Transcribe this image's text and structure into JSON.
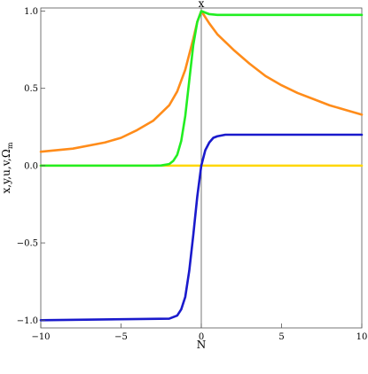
{
  "chart_data": {
    "type": "line",
    "title": "",
    "xlabel": "N",
    "ylabel": "x,y,u,v,Ω",
    "ylabel_subscript": "m",
    "top_label": "x",
    "xlim": [
      -10,
      10
    ],
    "ylim": [
      -1.05,
      1.02
    ],
    "x_ticks": [
      -10,
      -5,
      0,
      5,
      10
    ],
    "x_tick_labels": [
      "−10",
      "−5",
      "0",
      "5",
      "10"
    ],
    "y_ticks": [
      -1.0,
      -0.5,
      0.0,
      0.5,
      1.0
    ],
    "y_tick_labels": [
      "−1.0",
      "−0.5",
      "0.0",
      "0.5",
      "1.0"
    ],
    "grid": false,
    "series": [
      {
        "color": "#ffd700",
        "x": [
          -10,
          -5,
          0,
          5,
          10
        ],
        "y": [
          0,
          0,
          0,
          0,
          0
        ]
      },
      {
        "color": "#ff8c1a",
        "x": [
          -10,
          -8,
          -6,
          -5,
          -4,
          -3,
          -2,
          -1.5,
          -1,
          -0.5,
          -0.25,
          0,
          0.5,
          1,
          2,
          3,
          4,
          5,
          6,
          7,
          8,
          9,
          10
        ],
        "y": [
          0.09,
          0.11,
          0.15,
          0.18,
          0.23,
          0.29,
          0.39,
          0.48,
          0.62,
          0.82,
          0.93,
          1.0,
          0.92,
          0.85,
          0.75,
          0.66,
          0.58,
          0.52,
          0.47,
          0.43,
          0.39,
          0.36,
          0.33
        ]
      },
      {
        "color": "#22ee22",
        "x": [
          -10,
          -3,
          -2.5,
          -2,
          -1.75,
          -1.5,
          -1.25,
          -1,
          -0.75,
          -0.5,
          -0.25,
          0,
          0.25,
          0.5,
          1,
          2,
          5,
          10
        ],
        "y": [
          0,
          0,
          0.001,
          0.01,
          0.03,
          0.07,
          0.16,
          0.32,
          0.55,
          0.78,
          0.93,
          1.0,
          0.99,
          0.98,
          0.975,
          0.975,
          0.975,
          0.975
        ]
      },
      {
        "color": "#1a1acc",
        "x": [
          -10,
          -2,
          -1.5,
          -1.25,
          -1,
          -0.75,
          -0.5,
          -0.25,
          0,
          0.25,
          0.5,
          0.75,
          1,
          1.5,
          2,
          3,
          5,
          10
        ],
        "y": [
          -1.0,
          -0.99,
          -0.97,
          -0.93,
          -0.85,
          -0.68,
          -0.45,
          -0.2,
          0.0,
          0.1,
          0.15,
          0.18,
          0.19,
          0.2,
          0.2,
          0.2,
          0.2,
          0.2
        ]
      }
    ]
  }
}
